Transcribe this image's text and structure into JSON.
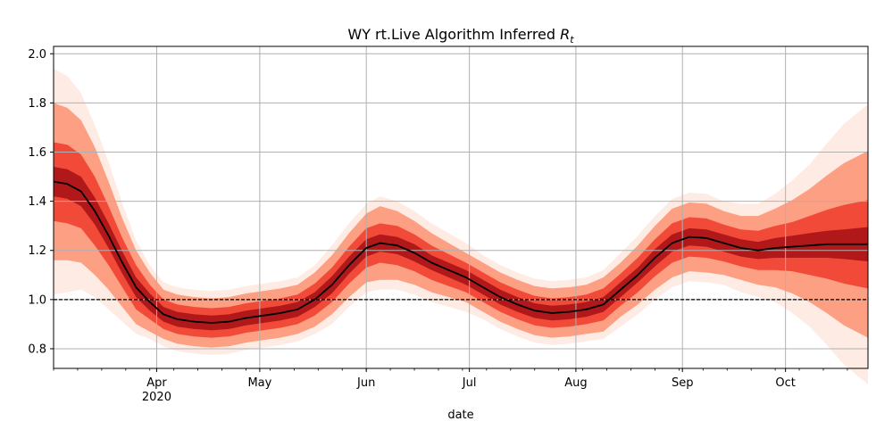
{
  "chart_data": {
    "type": "line",
    "title": "WY rt.Live Algorithm Inferred",
    "title_math": "R",
    "title_math_sub": "t",
    "xlabel": "date",
    "ylabel": "",
    "x_range": [
      "2020-03-02",
      "2020-10-25"
    ],
    "ylim": [
      0.72,
      2.03
    ],
    "grid": true,
    "x_ticks": [
      {
        "date": "2020-04-01",
        "label": "Apr",
        "sublabel": "2020"
      },
      {
        "date": "2020-05-01",
        "label": "May",
        "sublabel": ""
      },
      {
        "date": "2020-06-01",
        "label": "Jun",
        "sublabel": ""
      },
      {
        "date": "2020-07-01",
        "label": "Jul",
        "sublabel": ""
      },
      {
        "date": "2020-08-01",
        "label": "Aug",
        "sublabel": ""
      },
      {
        "date": "2020-09-01",
        "label": "Sep",
        "sublabel": ""
      },
      {
        "date": "2020-10-01",
        "label": "Oct",
        "sublabel": ""
      }
    ],
    "y_ticks": [
      0.8,
      1.0,
      1.2,
      1.4,
      1.6,
      1.8,
      2.0
    ],
    "y_tick_labels": [
      "0.8",
      "1.0",
      "1.2",
      "1.4",
      "1.6",
      "1.8",
      "2.0"
    ],
    "reference_line": 1.0,
    "series": [
      {
        "type": "line",
        "color": "#000000",
        "x": [
          "2020-03-02",
          "2020-03-06",
          "2020-03-10",
          "2020-03-14",
          "2020-03-18",
          "2020-03-22",
          "2020-03-26",
          "2020-03-30",
          "2020-04-03",
          "2020-04-07",
          "2020-04-12",
          "2020-04-17",
          "2020-04-22",
          "2020-04-27",
          "2020-05-02",
          "2020-05-07",
          "2020-05-12",
          "2020-05-17",
          "2020-05-22",
          "2020-05-27",
          "2020-06-01",
          "2020-06-05",
          "2020-06-10",
          "2020-06-15",
          "2020-06-20",
          "2020-06-25",
          "2020-06-30",
          "2020-07-05",
          "2020-07-10",
          "2020-07-15",
          "2020-07-20",
          "2020-07-25",
          "2020-07-30",
          "2020-08-04",
          "2020-08-09",
          "2020-08-14",
          "2020-08-19",
          "2020-08-24",
          "2020-08-29",
          "2020-09-03",
          "2020-09-08",
          "2020-09-13",
          "2020-09-18",
          "2020-09-23",
          "2020-09-28",
          "2020-10-03",
          "2020-10-08",
          "2020-10-13",
          "2020-10-18",
          "2020-10-25"
        ],
        "y": [
          1.48,
          1.47,
          1.44,
          1.36,
          1.26,
          1.15,
          1.05,
          0.99,
          0.94,
          0.92,
          0.91,
          0.905,
          0.91,
          0.925,
          0.935,
          0.945,
          0.96,
          1.0,
          1.06,
          1.14,
          1.21,
          1.23,
          1.22,
          1.19,
          1.15,
          1.12,
          1.09,
          1.05,
          1.01,
          0.98,
          0.955,
          0.945,
          0.95,
          0.96,
          0.98,
          1.04,
          1.1,
          1.17,
          1.23,
          1.255,
          1.25,
          1.23,
          1.21,
          1.2,
          1.21,
          1.215,
          1.22,
          1.225,
          1.225,
          1.225
        ],
        "band_half_widths": [
          [
            0.06,
            0.06,
            0.06,
            0.055,
            0.05,
            0.045,
            0.04,
            0.035,
            0.03,
            0.03,
            0.03,
            0.03,
            0.03,
            0.03,
            0.03,
            0.03,
            0.03,
            0.03,
            0.035,
            0.035,
            0.035,
            0.035,
            0.035,
            0.035,
            0.03,
            0.03,
            0.03,
            0.03,
            0.03,
            0.03,
            0.03,
            0.03,
            0.03,
            0.03,
            0.03,
            0.03,
            0.03,
            0.035,
            0.035,
            0.035,
            0.035,
            0.035,
            0.035,
            0.035,
            0.04,
            0.045,
            0.05,
            0.055,
            0.06,
            0.07
          ],
          [
            0.16,
            0.16,
            0.15,
            0.14,
            0.12,
            0.1,
            0.09,
            0.07,
            0.06,
            0.06,
            0.06,
            0.06,
            0.06,
            0.06,
            0.06,
            0.06,
            0.06,
            0.065,
            0.07,
            0.075,
            0.08,
            0.08,
            0.08,
            0.075,
            0.07,
            0.065,
            0.06,
            0.06,
            0.06,
            0.06,
            0.06,
            0.06,
            0.06,
            0.06,
            0.065,
            0.065,
            0.07,
            0.075,
            0.08,
            0.08,
            0.08,
            0.075,
            0.075,
            0.08,
            0.09,
            0.1,
            0.12,
            0.14,
            0.16,
            0.18
          ],
          [
            0.32,
            0.31,
            0.29,
            0.26,
            0.22,
            0.18,
            0.15,
            0.12,
            0.1,
            0.1,
            0.1,
            0.1,
            0.1,
            0.1,
            0.1,
            0.1,
            0.1,
            0.11,
            0.12,
            0.13,
            0.14,
            0.15,
            0.14,
            0.13,
            0.12,
            0.11,
            0.1,
            0.1,
            0.1,
            0.1,
            0.1,
            0.1,
            0.1,
            0.1,
            0.11,
            0.11,
            0.12,
            0.13,
            0.14,
            0.14,
            0.14,
            0.13,
            0.13,
            0.14,
            0.16,
            0.19,
            0.23,
            0.28,
            0.33,
            0.38
          ],
          [
            0.46,
            0.44,
            0.4,
            0.35,
            0.3,
            0.24,
            0.19,
            0.15,
            0.13,
            0.13,
            0.13,
            0.13,
            0.13,
            0.13,
            0.13,
            0.13,
            0.13,
            0.14,
            0.16,
            0.17,
            0.18,
            0.19,
            0.18,
            0.17,
            0.16,
            0.15,
            0.14,
            0.13,
            0.13,
            0.13,
            0.13,
            0.13,
            0.13,
            0.13,
            0.14,
            0.15,
            0.16,
            0.17,
            0.18,
            0.18,
            0.18,
            0.17,
            0.18,
            0.19,
            0.22,
            0.27,
            0.33,
            0.41,
            0.49,
            0.57
          ]
        ]
      }
    ],
    "colors": {
      "band_colors": [
        "#a50f15",
        "#ef3b2c",
        "#fc9272",
        "#fee0d2"
      ],
      "line": "#000000",
      "grid": "#b0b0b0",
      "reference": "#000000"
    }
  }
}
